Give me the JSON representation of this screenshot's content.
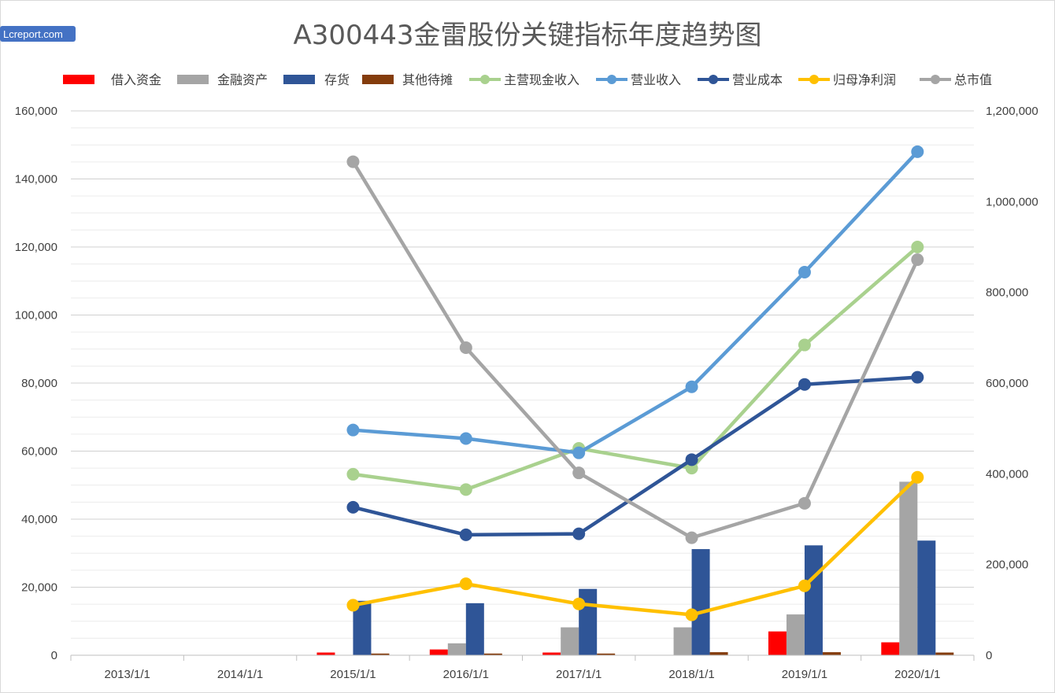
{
  "watermark": "Lcreport.com",
  "chart_data": {
    "type": "bar+line",
    "title": "A300443金雷股份关键指标年度趋势图",
    "categories": [
      "2013/1/1",
      "2014/1/1",
      "2015/1/1",
      "2016/1/1",
      "2017/1/1",
      "2018/1/1",
      "2019/1/1",
      "2020/1/1"
    ],
    "y_left": {
      "min": 0,
      "max": 160000,
      "step": 20000,
      "tick_labels": [
        "0",
        "20,000",
        "40,000",
        "60,000",
        "80,000",
        "100,000",
        "120,000",
        "140,000",
        "160,000"
      ]
    },
    "y_right": {
      "min": 0,
      "max": 1200000,
      "step": 200000,
      "tick_labels": [
        "0",
        "200,000",
        "400,000",
        "600,000",
        "800,000",
        "1,000,000",
        "1,200,000"
      ]
    },
    "grid": true,
    "legend_position": "top",
    "bar_series": [
      {
        "name": "借入资金",
        "color": "#ff0000",
        "values": [
          null,
          null,
          800,
          1700,
          800,
          null,
          7000,
          3800
        ]
      },
      {
        "name": "金融资产",
        "color": "#a5a5a5",
        "values": [
          null,
          null,
          null,
          3500,
          8200,
          8200,
          12000,
          51000
        ]
      },
      {
        "name": "存货",
        "color": "#2f5597",
        "values": [
          null,
          null,
          16000,
          15300,
          19500,
          31200,
          32300,
          33700
        ]
      },
      {
        "name": "其他待摊",
        "color": "#843c0c",
        "values": [
          null,
          null,
          500,
          500,
          500,
          900,
          900,
          800
        ]
      }
    ],
    "line_series": [
      {
        "name": "主营现金收入",
        "color": "#a9d18e",
        "axis": "left",
        "values": [
          null,
          null,
          53200,
          48700,
          60800,
          55000,
          91200,
          120000
        ]
      },
      {
        "name": "营业收入",
        "color": "#5b9bd5",
        "axis": "left",
        "values": [
          null,
          null,
          66200,
          63700,
          59500,
          78900,
          112600,
          148000
        ]
      },
      {
        "name": "营业成本",
        "color": "#2f5597",
        "axis": "left",
        "values": [
          null,
          null,
          43500,
          35400,
          35700,
          57500,
          79600,
          81700
        ]
      },
      {
        "name": "归母净利润",
        "color": "#ffc000",
        "axis": "left",
        "values": [
          null,
          null,
          14700,
          21000,
          15100,
          11900,
          20400,
          52300
        ]
      },
      {
        "name": "总市值",
        "color": "#a5a5a5",
        "axis": "right",
        "values": [
          null,
          null,
          1088000,
          678000,
          402000,
          259000,
          335000,
          872000
        ]
      }
    ]
  }
}
